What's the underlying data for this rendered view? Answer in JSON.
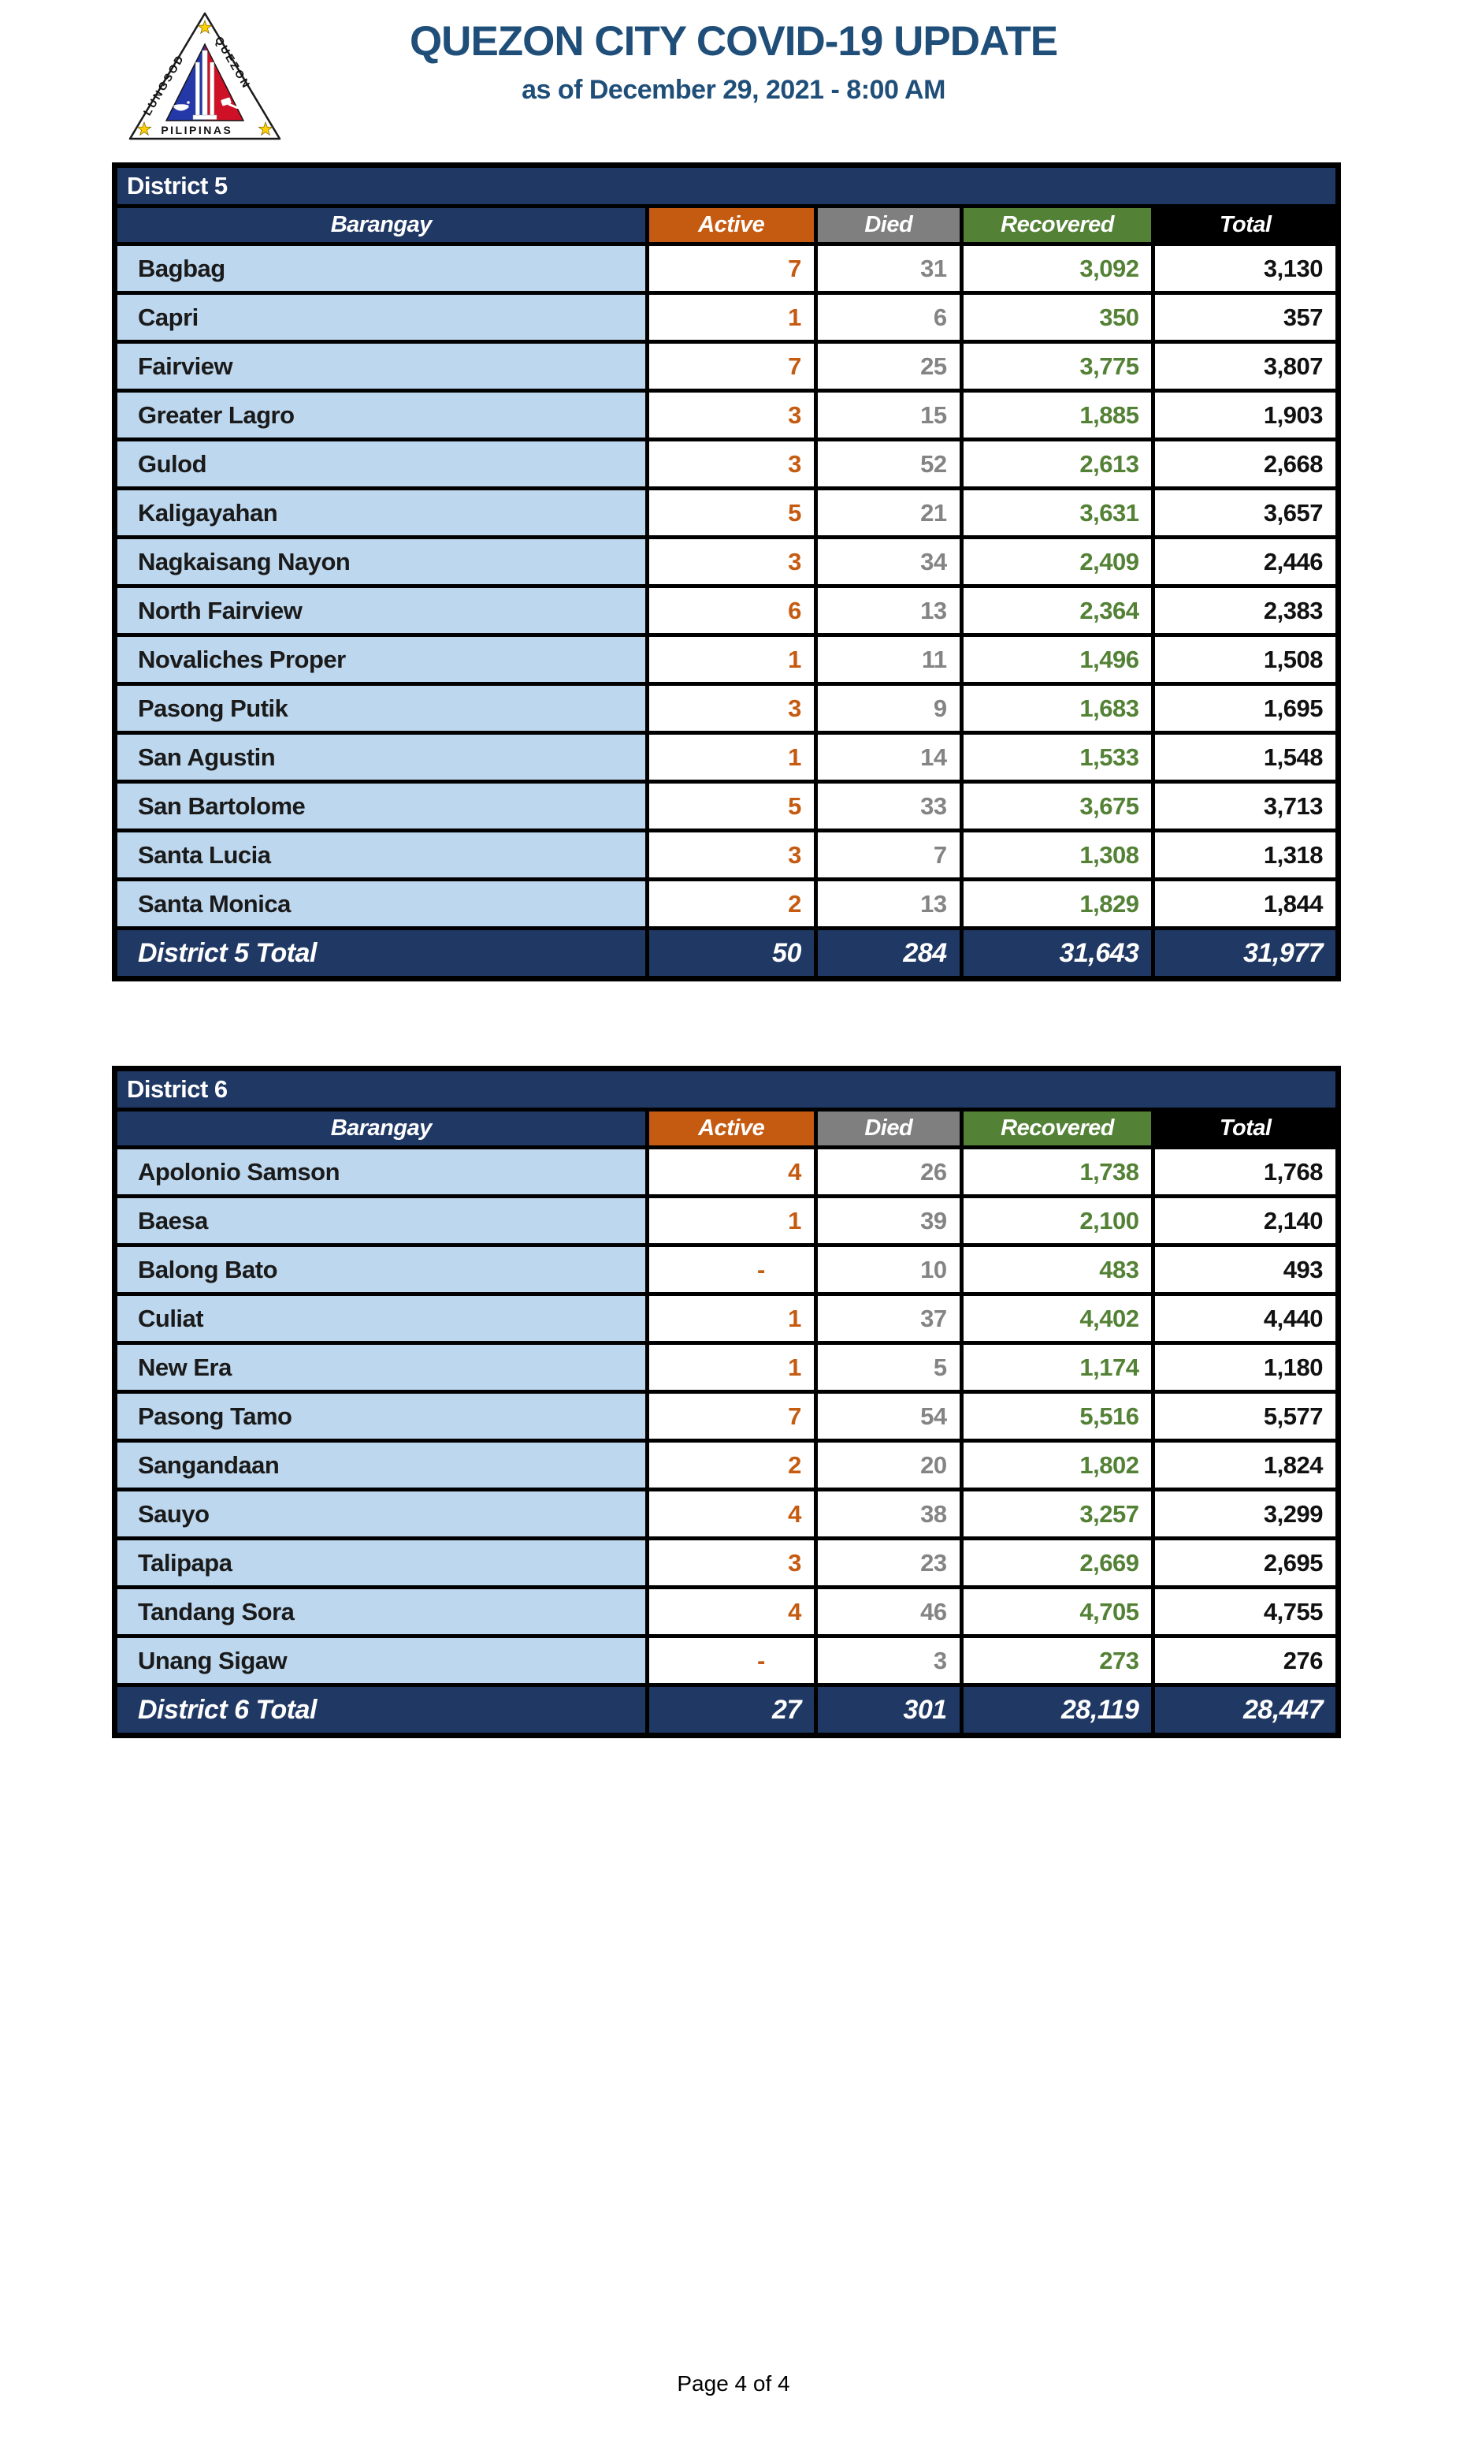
{
  "header": {
    "title": "QUEZON CITY COVID-19 UPDATE",
    "subtitle": "as of December 29, 2021 - 8:00 AM",
    "logo": {
      "left": "LUNGSOD",
      "right": "QUEZON",
      "bottom": "PILIPINAS"
    }
  },
  "columns": [
    "Barangay",
    "Active",
    "Died",
    "Recovered",
    "Total"
  ],
  "colors": {
    "navy": "#203864",
    "title_text": "#1F4E79",
    "active_accent": "#C55A11",
    "died_accent": "#7F7F7F",
    "recovered_accent": "#538135",
    "total_accent": "#000000",
    "barangay_cell_bg": "#BDD7EE"
  },
  "tables": [
    {
      "district": "District 5",
      "rows": [
        [
          "Bagbag",
          "7",
          "31",
          "3,092",
          "3,130"
        ],
        [
          "Capri",
          "1",
          "6",
          "350",
          "357"
        ],
        [
          "Fairview",
          "7",
          "25",
          "3,775",
          "3,807"
        ],
        [
          "Greater Lagro",
          "3",
          "15",
          "1,885",
          "1,903"
        ],
        [
          "Gulod",
          "3",
          "52",
          "2,613",
          "2,668"
        ],
        [
          "Kaligayahan",
          "5",
          "21",
          "3,631",
          "3,657"
        ],
        [
          "Nagkaisang Nayon",
          "3",
          "34",
          "2,409",
          "2,446"
        ],
        [
          "North Fairview",
          "6",
          "13",
          "2,364",
          "2,383"
        ],
        [
          "Novaliches Proper",
          "1",
          "11",
          "1,496",
          "1,508"
        ],
        [
          "Pasong Putik",
          "3",
          "9",
          "1,683",
          "1,695"
        ],
        [
          "San Agustin",
          "1",
          "14",
          "1,533",
          "1,548"
        ],
        [
          "San Bartolome",
          "5",
          "33",
          "3,675",
          "3,713"
        ],
        [
          "Santa Lucia",
          "3",
          "7",
          "1,308",
          "1,318"
        ],
        [
          "Santa Monica",
          "2",
          "13",
          "1,829",
          "1,844"
        ]
      ],
      "total": [
        "District 5 Total",
        "50",
        "284",
        "31,643",
        "31,977"
      ]
    },
    {
      "district": "District 6",
      "rows": [
        [
          "Apolonio Samson",
          "4",
          "26",
          "1,738",
          "1,768"
        ],
        [
          "Baesa",
          "1",
          "39",
          "2,100",
          "2,140"
        ],
        [
          "Balong Bato",
          "-",
          "10",
          "483",
          "493"
        ],
        [
          "Culiat",
          "1",
          "37",
          "4,402",
          "4,440"
        ],
        [
          "New Era",
          "1",
          "5",
          "1,174",
          "1,180"
        ],
        [
          "Pasong Tamo",
          "7",
          "54",
          "5,516",
          "5,577"
        ],
        [
          "Sangandaan",
          "2",
          "20",
          "1,802",
          "1,824"
        ],
        [
          "Sauyo",
          "4",
          "38",
          "3,257",
          "3,299"
        ],
        [
          "Talipapa",
          "3",
          "23",
          "2,669",
          "2,695"
        ],
        [
          "Tandang Sora",
          "4",
          "46",
          "4,705",
          "4,755"
        ],
        [
          "Unang Sigaw",
          "-",
          "3",
          "273",
          "276"
        ]
      ],
      "total": [
        "District 6 Total",
        "27",
        "301",
        "28,119",
        "28,447"
      ]
    }
  ],
  "footer": {
    "page_label": "Page 4 of 4"
  }
}
